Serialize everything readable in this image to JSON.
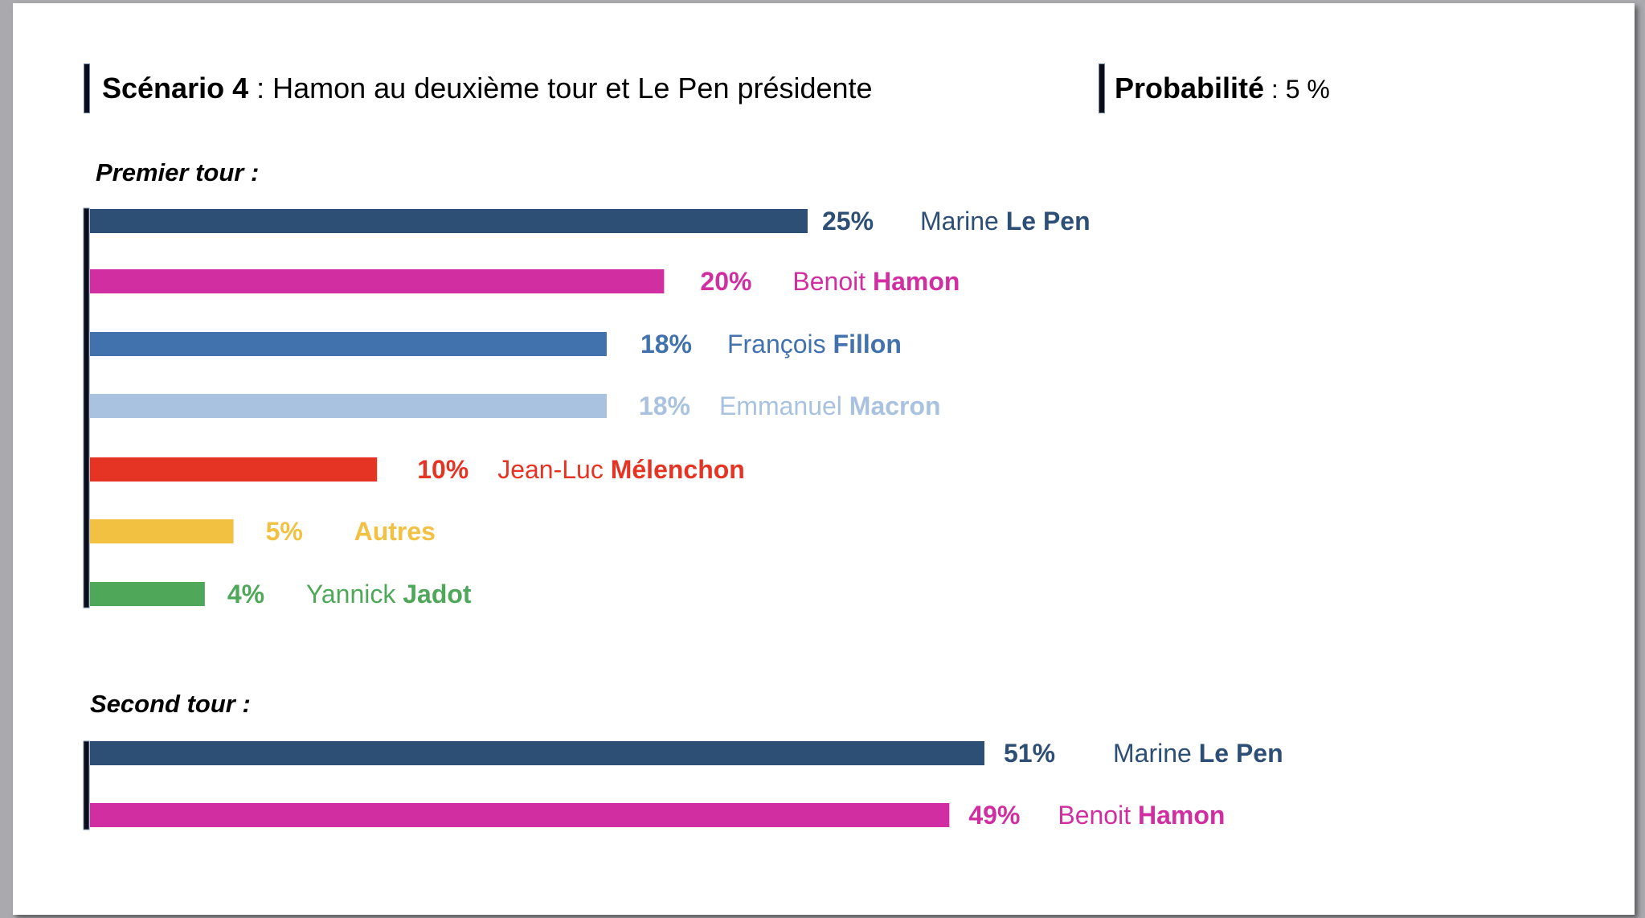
{
  "header": {
    "scenario_label": "Scénario 4",
    "scenario_sep": " : ",
    "scenario_text": "Hamon au deuxième tour et Le Pen présidente",
    "probability_label": "Probabilité",
    "probability_sep": " : ",
    "probability_value": "5 %"
  },
  "chart_data": [
    {
      "type": "bar",
      "orientation": "horizontal",
      "title": "Premier tour :",
      "xlabel": "",
      "ylabel": "",
      "xlim": [
        0,
        25
      ],
      "grid": false,
      "legend": "none",
      "categories": [
        {
          "first": "Marine",
          "last": "Le Pen"
        },
        {
          "first": "Benoit",
          "last": "Hamon"
        },
        {
          "first": "François",
          "last": "Fillon"
        },
        {
          "first": "Emmanuel",
          "last": "Macron"
        },
        {
          "first": "Jean-Luc",
          "last": "Mélenchon"
        },
        {
          "first": "",
          "last": "Autres"
        },
        {
          "first": "Yannick",
          "last": "Jadot"
        }
      ],
      "values": [
        25,
        20,
        18,
        18,
        10,
        5,
        4
      ],
      "labels": [
        "25%",
        "20%",
        "18%",
        "18%",
        "10%",
        "5%",
        "4%"
      ],
      "colors": [
        "#2d4e75",
        "#d02ea1",
        "#4272ae",
        "#a8c2e0",
        "#e63424",
        "#f2c142",
        "#4fa85a"
      ]
    },
    {
      "type": "bar",
      "orientation": "horizontal",
      "title": "Second tour :",
      "xlabel": "",
      "ylabel": "",
      "xlim": [
        0,
        51
      ],
      "grid": false,
      "legend": "none",
      "categories": [
        {
          "first": "Marine",
          "last": "Le Pen"
        },
        {
          "first": "Benoit",
          "last": "Hamon"
        }
      ],
      "values": [
        51,
        49
      ],
      "labels": [
        "51%",
        "49%"
      ],
      "colors": [
        "#2d4e75",
        "#d02ea1"
      ]
    }
  ]
}
